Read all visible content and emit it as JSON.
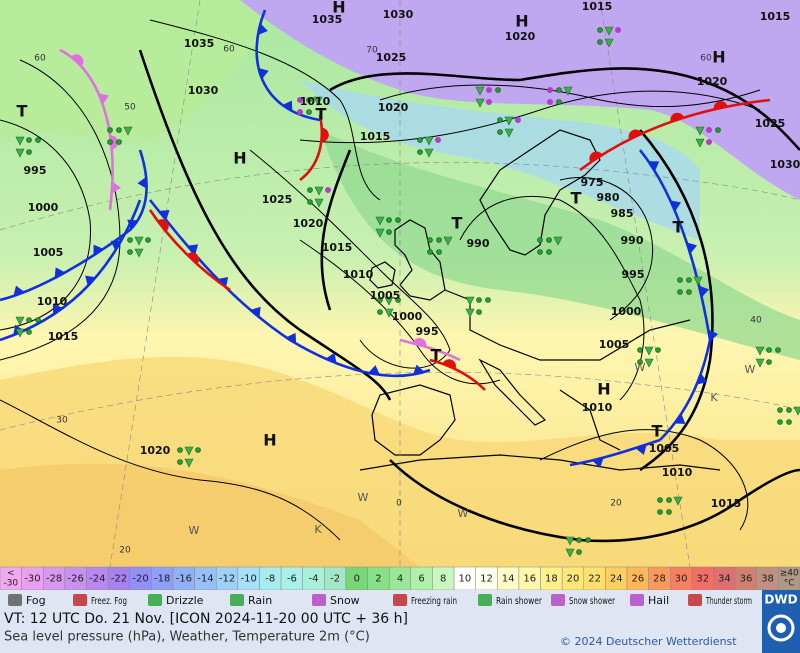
{
  "map": {
    "pressure_labels": [
      "1035",
      "1030",
      "1035",
      "1030",
      "1025",
      "1020",
      "1015",
      "1015",
      "1020",
      "1025",
      "1030",
      "1010",
      "1020",
      "1015",
      "995",
      "1000",
      "1005",
      "1010",
      "1015",
      "1025",
      "1020",
      "1015",
      "1010",
      "1005",
      "1000",
      "995",
      "990",
      "975",
      "980",
      "985",
      "990",
      "995",
      "1000",
      "1005",
      "1010",
      "1005",
      "1010",
      "1015",
      "1020"
    ],
    "centers": [
      "H",
      "H",
      "H",
      "T",
      "H",
      "T",
      "T",
      "T",
      "T",
      "T",
      "H",
      "H",
      "T"
    ],
    "temperature_labels": [
      "60",
      "60",
      "50",
      "70",
      "60",
      "40",
      "30",
      "20",
      "20",
      "0"
    ],
    "zone_labels": [
      "W",
      "W",
      "W",
      "W",
      "K",
      "K",
      "W"
    ]
  },
  "legend": {
    "temperature": [
      {
        "label": "<",
        "sub": "-30",
        "color": "#f0a8f0"
      },
      {
        "label": "-30",
        "color": "#e8a0f0"
      },
      {
        "label": "-28",
        "color": "#d898f0"
      },
      {
        "label": "-26",
        "color": "#c890f0"
      },
      {
        "label": "-24",
        "color": "#b888f0"
      },
      {
        "label": "-22",
        "color": "#a880f0"
      },
      {
        "label": "-20",
        "color": "#9090f8"
      },
      {
        "label": "-18",
        "color": "#90a0f8"
      },
      {
        "label": "-16",
        "color": "#90b0f8"
      },
      {
        "label": "-14",
        "color": "#98c0f8"
      },
      {
        "label": "-12",
        "color": "#a0d0f8"
      },
      {
        "label": "-10",
        "color": "#a8e0f8"
      },
      {
        "label": "-8",
        "color": "#a8ecf0"
      },
      {
        "label": "-6",
        "color": "#a8f0e8"
      },
      {
        "label": "-4",
        "color": "#a8f0d8"
      },
      {
        "label": "-2",
        "color": "#a0e8c8"
      },
      {
        "label": "0",
        "color": "#78d878"
      },
      {
        "label": "2",
        "color": "#88e088"
      },
      {
        "label": "4",
        "color": "#98e898"
      },
      {
        "label": "6",
        "color": "#b0f0a8"
      },
      {
        "label": "8",
        "color": "#c8f8c0"
      },
      {
        "label": "10",
        "color": "#ffffff"
      },
      {
        "label": "12",
        "color": "#fffff0"
      },
      {
        "label": "14",
        "color": "#fffcc8"
      },
      {
        "label": "16",
        "color": "#fff8a8"
      },
      {
        "label": "18",
        "color": "#fff088"
      },
      {
        "label": "20",
        "color": "#ffe878"
      },
      {
        "label": "22",
        "color": "#ffe070"
      },
      {
        "label": "24",
        "color": "#ffd060"
      },
      {
        "label": "26",
        "color": "#ffb858"
      },
      {
        "label": "28",
        "color": "#ff9858"
      },
      {
        "label": "30",
        "color": "#f88060"
      },
      {
        "label": "32",
        "color": "#f07068"
      },
      {
        "label": "34",
        "color": "#e07070"
      },
      {
        "label": "36",
        "color": "#d08070"
      },
      {
        "label": "38",
        "color": "#c09080"
      },
      {
        "label": "≥40",
        "sub": "°C",
        "color": "#b09888"
      }
    ],
    "symbols": [
      "Fog",
      "Freez. Fog",
      "Drizzle",
      "Rain",
      "Snow",
      "Freezing rain",
      "Rain shower",
      "Snow shower",
      "Hail",
      "Thunder storm"
    ]
  },
  "footer": {
    "line1": "VT: 12 UTC Do.  21 Nov. [ICON 2024-11-20  00 UTC + 36 h]",
    "line2": "Sea level pressure (hPa), Weather, Temperature 2m (°C)",
    "copyright": "© 2024 Deutscher Wetterdienst",
    "logo": "DWD"
  }
}
